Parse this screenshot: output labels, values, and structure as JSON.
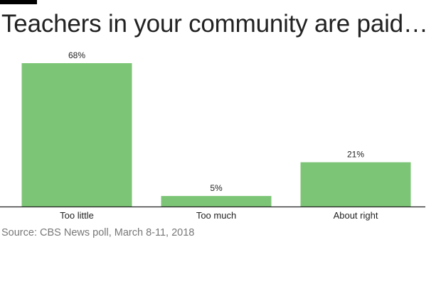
{
  "chart_data": {
    "type": "bar",
    "title": "Teachers in your community are paid…",
    "categories": [
      "Too little",
      "Too much",
      "About right"
    ],
    "values": [
      68,
      5,
      21
    ],
    "value_labels": [
      "68%",
      "5%",
      "21%"
    ],
    "unit": "%",
    "ylim": [
      0,
      68
    ],
    "grid": false,
    "legend": "none",
    "xlabel": "",
    "ylabel": "",
    "source": "Source: CBS News poll, March 8-11, 2018"
  },
  "colors": {
    "bar": "#7cc576",
    "axis": "#222222",
    "label_text": "#222222",
    "title_text": "#222222",
    "source_text": "#777777",
    "accent": "#000000"
  }
}
